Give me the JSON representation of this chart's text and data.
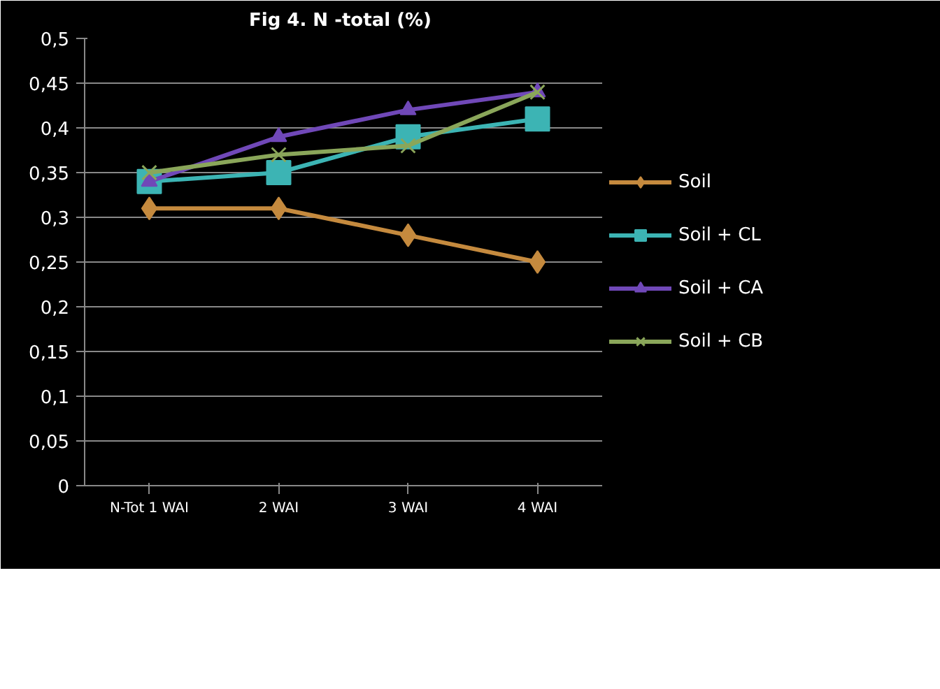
{
  "chart_data": {
    "type": "line",
    "title": "Fig 4.  N -total (%)",
    "categories": [
      "N-Tot 1 WAI",
      "2 WAI",
      "3 WAI",
      "4 WAI"
    ],
    "series": [
      {
        "name": "Soil",
        "color": "#c58a3e",
        "marker": "diamond",
        "values": [
          0.31,
          0.31,
          0.28,
          0.25
        ]
      },
      {
        "name": "Soil + CL",
        "color": "#3cb4b4",
        "marker": "square",
        "values": [
          0.34,
          0.35,
          0.39,
          0.41
        ]
      },
      {
        "name": "Soil + CA",
        "color": "#7048b8",
        "marker": "triangle",
        "values": [
          0.34,
          0.39,
          0.42,
          0.44
        ]
      },
      {
        "name": "Soil + CB",
        "color": "#8aa65a",
        "marker": "cross",
        "values": [
          0.35,
          0.37,
          0.38,
          0.44
        ]
      }
    ],
    "ylim": [
      0,
      0.5
    ],
    "yticks": [
      0,
      {
        "value": 0.05,
        "label": "0,05"
      },
      {
        "value": 0.1,
        "label": "0,1"
      },
      {
        "value": 0.15,
        "label": "0,15"
      },
      {
        "value": 0.2,
        "label": "0,2"
      },
      {
        "value": 0.25,
        "label": "0,25"
      },
      {
        "value": 0.3,
        "label": "0,3"
      },
      {
        "value": 0.35,
        "label": "0,35"
      },
      {
        "value": 0.4,
        "label": "0,4"
      },
      {
        "value": 0.45,
        "label": "0,45"
      },
      {
        "value": 0.5,
        "label": "0,5"
      }
    ],
    "grid": "y",
    "legend": "right",
    "line_style": "solid"
  }
}
